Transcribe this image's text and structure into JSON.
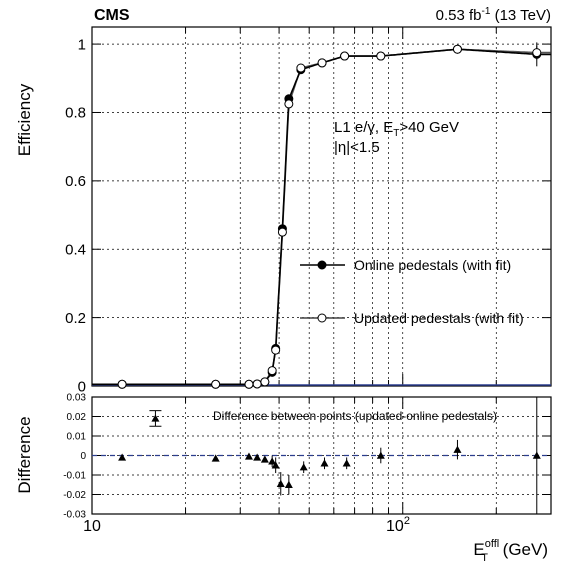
{
  "header": {
    "experiment": "CMS",
    "luminosity_label": "0.53 fb",
    "luminosity_sup": "-1",
    "luminosity_energy": " (13 TeV)"
  },
  "annotation": {
    "line1_a": "L1 e/",
    "line1_gamma": "γ",
    "line1_b": ", E",
    "line1_sub": "T",
    "line1_c": ">40 GeV",
    "line2_a": "|",
    "line2_eta": "η",
    "line2_b": "|<1.5"
  },
  "legend": {
    "online": "Online pedestals (with fit)",
    "updated": "Updated pedestals (with fit)"
  },
  "lower": {
    "title": "Difference between points (updated-online pedestals)"
  },
  "axes": {
    "ylabel_top": "Efficiency",
    "ylabel_bottom": "Difference",
    "xlabel_main": "E",
    "xlabel_sup": "offl",
    "xlabel_sub": "T",
    "xlabel_unit": " (GeV)",
    "x_tick_10": "10",
    "x_tick_100_base": "10",
    "x_tick_100_exp": "2"
  },
  "colors": {
    "dashed_zero_line": "#2c3e8f",
    "upper_zero_line": "#2c3e8f"
  },
  "chart_data": [
    {
      "type": "line",
      "panel": "efficiency",
      "xscale": "log",
      "xlim": [
        10,
        300
      ],
      "ylim": [
        0,
        1.05
      ],
      "yticks": [
        0,
        0.2,
        0.4,
        0.6,
        0.8,
        1
      ],
      "ytick_labels": [
        "0",
        "0.2",
        "0.4",
        "0.6",
        "0.8",
        "1"
      ],
      "grid": true,
      "legend_position": "center-right",
      "series": [
        {
          "name": "Online pedestals (with fit)",
          "marker": "filled-circle",
          "points": [
            {
              "x": 12.5,
              "y": 0.005
            },
            {
              "x": 25,
              "y": 0.005
            },
            {
              "x": 32,
              "y": 0.005
            },
            {
              "x": 34,
              "y": 0.006
            },
            {
              "x": 36,
              "y": 0.012
            },
            {
              "x": 38,
              "y": 0.04
            },
            {
              "x": 39,
              "y": 0.11
            },
            {
              "x": 41,
              "y": 0.46
            },
            {
              "x": 43,
              "y": 0.84
            },
            {
              "x": 47,
              "y": 0.925
            },
            {
              "x": 55,
              "y": 0.945
            },
            {
              "x": 65,
              "y": 0.965
            },
            {
              "x": 85,
              "y": 0.965
            },
            {
              "x": 150,
              "y": 0.985
            },
            {
              "x": 270,
              "y": 0.97,
              "err": 0.035
            }
          ]
        },
        {
          "name": "Updated pedestals (with fit)",
          "marker": "open-circle",
          "points": [
            {
              "x": 12.5,
              "y": 0.005
            },
            {
              "x": 25,
              "y": 0.005
            },
            {
              "x": 32,
              "y": 0.005
            },
            {
              "x": 34,
              "y": 0.006
            },
            {
              "x": 36,
              "y": 0.012
            },
            {
              "x": 38,
              "y": 0.045
            },
            {
              "x": 39,
              "y": 0.105
            },
            {
              "x": 41,
              "y": 0.45
            },
            {
              "x": 43,
              "y": 0.825
            },
            {
              "x": 47,
              "y": 0.93
            },
            {
              "x": 55,
              "y": 0.945
            },
            {
              "x": 65,
              "y": 0.965
            },
            {
              "x": 85,
              "y": 0.965
            },
            {
              "x": 150,
              "y": 0.985
            },
            {
              "x": 270,
              "y": 0.975,
              "err": 0.02
            }
          ]
        }
      ]
    },
    {
      "type": "scatter",
      "panel": "difference",
      "xscale": "log",
      "xlim": [
        10,
        300
      ],
      "ylim": [
        -0.03,
        0.03
      ],
      "yticks": [
        -0.03,
        -0.02,
        -0.01,
        0,
        0.01,
        0.02,
        0.03
      ],
      "ytick_labels": [
        "-0.03",
        "-0.02",
        "-0.01",
        "0",
        "0.01",
        "0.02",
        "0.03"
      ],
      "grid": true,
      "series": [
        {
          "name": "Difference between points (updated-online pedestals)",
          "marker": "filled-triangle",
          "points": [
            {
              "x": 12.5,
              "y": -0.001,
              "err": 0
            },
            {
              "x": 16,
              "y": 0.019,
              "err": 0.004,
              "cap": true
            },
            {
              "x": 25,
              "y": -0.0015,
              "err": 0
            },
            {
              "x": 32,
              "y": -0.0005,
              "err": 0
            },
            {
              "x": 34,
              "y": -0.001,
              "err": 0
            },
            {
              "x": 36,
              "y": -0.002,
              "err": 0.001
            },
            {
              "x": 38,
              "y": -0.003,
              "err": 0.003
            },
            {
              "x": 39,
              "y": -0.005,
              "err": 0.004
            },
            {
              "x": 40.5,
              "y": -0.0145,
              "err": 0.006
            },
            {
              "x": 43,
              "y": -0.015,
              "err": 0.005
            },
            {
              "x": 48,
              "y": -0.006,
              "err": 0.003
            },
            {
              "x": 56,
              "y": -0.004,
              "err": 0.003
            },
            {
              "x": 66,
              "y": -0.004,
              "err": 0.003
            },
            {
              "x": 85,
              "y": 0,
              "err": 0.004
            },
            {
              "x": 150,
              "y": 0.003,
              "err": 0.005
            },
            {
              "x": 270,
              "y": 0,
              "err": 0.03
            }
          ]
        }
      ]
    }
  ]
}
